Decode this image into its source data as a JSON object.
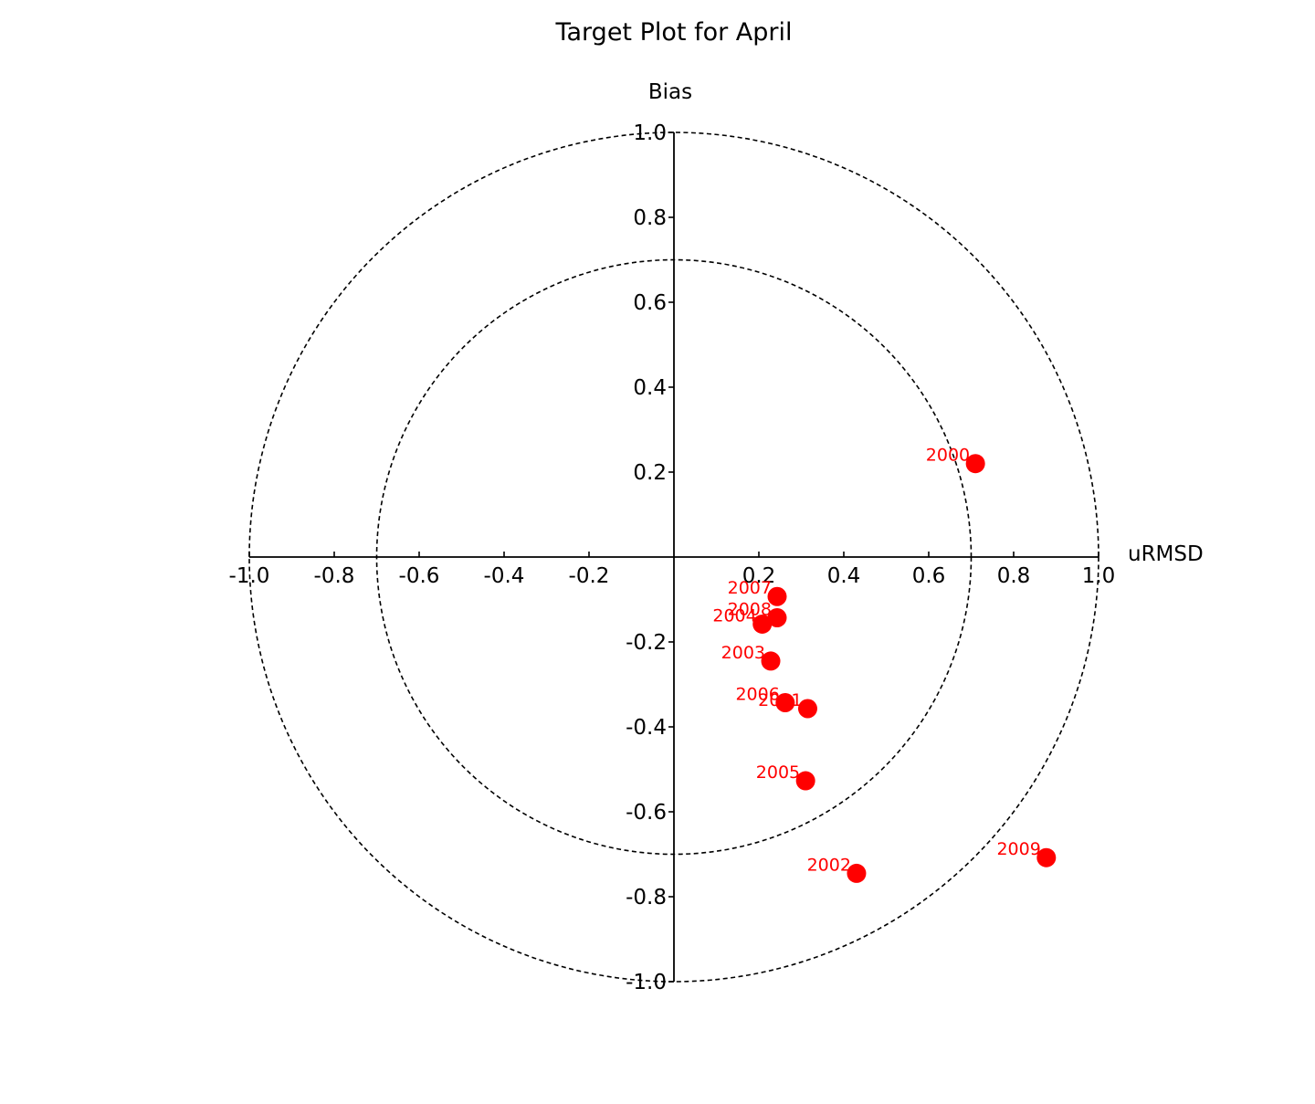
{
  "chart_data": {
    "type": "scatter",
    "title": "Target Plot for April",
    "xlabel": "uRMSD",
    "ylabel": "Bias",
    "xlim": [
      -1.0,
      1.0
    ],
    "ylim": [
      -1.0,
      1.0
    ],
    "grid": false,
    "x_ticks": [
      "-1.0",
      "-0.8",
      "-0.6",
      "-0.4",
      "-0.2",
      "0.2",
      "0.4",
      "0.6",
      "0.8",
      "1.0"
    ],
    "y_ticks": [
      "1.0",
      "0.8",
      "0.6",
      "0.4",
      "0.2",
      "-0.2",
      "-0.4",
      "-0.6",
      "-0.8",
      "-1.0"
    ],
    "circles": [
      0.7,
      1.0
    ],
    "marker_color": "#ff0000",
    "label_color": "#ff0000",
    "points": [
      {
        "label": "2000",
        "x": 0.71,
        "y": 0.22
      },
      {
        "label": "2001",
        "x": 0.315,
        "y": -0.357
      },
      {
        "label": "2002",
        "x": 0.43,
        "y": -0.745
      },
      {
        "label": "2003",
        "x": 0.228,
        "y": -0.245
      },
      {
        "label": "2004",
        "x": 0.208,
        "y": -0.158
      },
      {
        "label": "2005",
        "x": 0.31,
        "y": -0.527
      },
      {
        "label": "2006",
        "x": 0.262,
        "y": -0.343
      },
      {
        "label": "2007",
        "x": 0.243,
        "y": -0.093
      },
      {
        "label": "2008",
        "x": 0.243,
        "y": -0.143
      },
      {
        "label": "2009",
        "x": 0.877,
        "y": -0.708
      }
    ]
  }
}
